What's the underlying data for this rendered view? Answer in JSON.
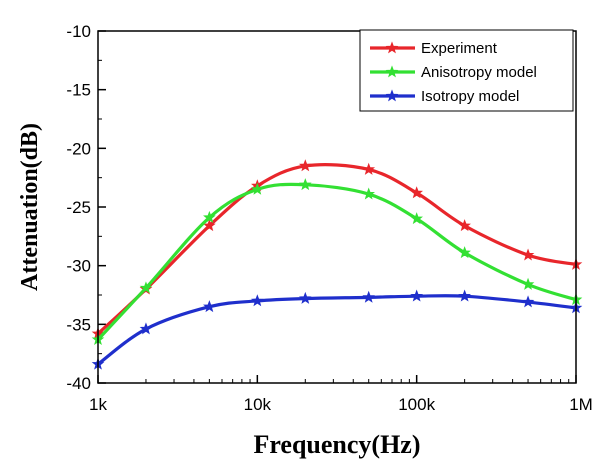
{
  "chart_data": {
    "type": "line",
    "xlabel": "Frequency(Hz)",
    "ylabel": "Attenuation(dB)",
    "x_scale": "log",
    "xlim": [
      1000,
      1000000
    ],
    "ylim": [
      -40,
      -10
    ],
    "x_ticks": [
      {
        "value": 1000,
        "label": "1k"
      },
      {
        "value": 10000,
        "label": "10k"
      },
      {
        "value": 100000,
        "label": "100k"
      },
      {
        "value": 1000000,
        "label": "1M"
      }
    ],
    "y_ticks": [
      {
        "value": -10,
        "label": "-10"
      },
      {
        "value": -15,
        "label": "-15"
      },
      {
        "value": -20,
        "label": "-20"
      },
      {
        "value": -25,
        "label": "-25"
      },
      {
        "value": -30,
        "label": "-30"
      },
      {
        "value": -35,
        "label": "-35"
      },
      {
        "value": -40,
        "label": "-40"
      }
    ],
    "grid": false,
    "legend_position": "top-right",
    "x": [
      1000,
      2000,
      5000,
      10000,
      20000,
      50000,
      100000,
      200000,
      500000,
      1000000
    ],
    "series": [
      {
        "name": "Experiment",
        "color": "#e8262b",
        "marker": "star",
        "values": [
          -35.8,
          -32.0,
          -26.6,
          -23.2,
          -21.5,
          -21.8,
          -23.8,
          -26.6,
          -29.1,
          -29.9
        ]
      },
      {
        "name": "Anisotropy model",
        "color": "#33e033",
        "marker": "star",
        "values": [
          -36.3,
          -31.9,
          -25.9,
          -23.5,
          -23.1,
          -23.9,
          -26.0,
          -28.9,
          -31.6,
          -32.9
        ]
      },
      {
        "name": "Isotropy model",
        "color": "#1f2fcc",
        "marker": "star",
        "values": [
          -38.4,
          -35.4,
          -33.5,
          -33.0,
          -32.8,
          -32.7,
          -32.6,
          -32.6,
          -33.1,
          -33.6
        ]
      }
    ]
  }
}
